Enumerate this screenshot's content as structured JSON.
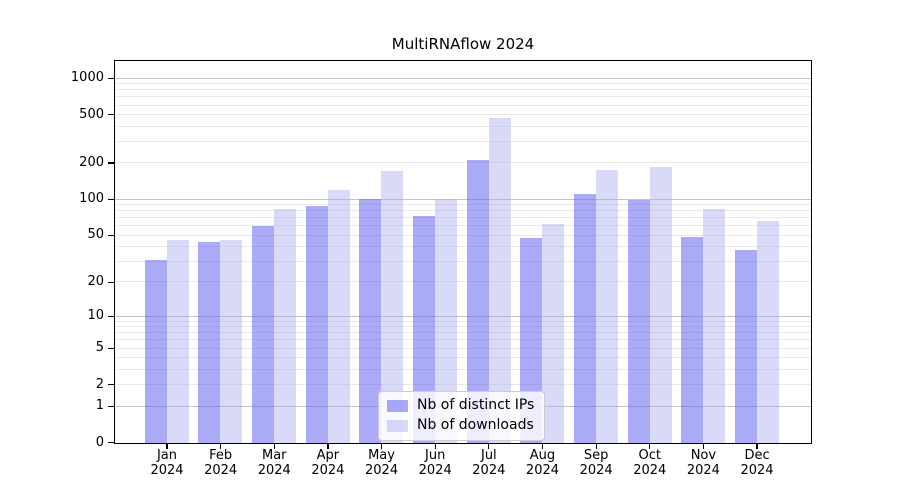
{
  "title": "MultiRNAflow 2024",
  "legend": {
    "items": [
      {
        "label": "Nb of distinct IPs",
        "color": "rgba(100,100,240,0.55)"
      },
      {
        "label": "Nb of downloads",
        "color": "rgba(170,170,240,0.45)"
      }
    ]
  },
  "x_axis": {
    "year": "2024",
    "months": [
      "Jan",
      "Feb",
      "Mar",
      "Apr",
      "May",
      "Jun",
      "Jul",
      "Aug",
      "Sep",
      "Oct",
      "Nov",
      "Dec"
    ]
  },
  "y_axis": {
    "tick_labels": [
      0,
      1,
      2,
      5,
      10,
      20,
      50,
      100,
      200,
      500,
      1000
    ]
  },
  "chart_data": {
    "type": "bar",
    "title": "MultiRNAflow 2024",
    "categories": [
      "Jan 2024",
      "Feb 2024",
      "Mar 2024",
      "Apr 2024",
      "May 2024",
      "Jun 2024",
      "Jul 2024",
      "Aug 2024",
      "Sep 2024",
      "Oct 2024",
      "Nov 2024",
      "Dec 2024"
    ],
    "series": [
      {
        "name": "Nb of distinct IPs",
        "color": "rgba(100,100,240,0.55)",
        "values": [
          31,
          44,
          60,
          89,
          102,
          73,
          213,
          48,
          112,
          100,
          49,
          38
        ]
      },
      {
        "name": "Nb of downloads",
        "color": "rgba(170,170,240,0.45)",
        "values": [
          46,
          46,
          84,
          119,
          174,
          102,
          470,
          62,
          176,
          185,
          83,
          66
        ]
      }
    ],
    "y_scale": "log1p",
    "y_ticks": [
      0,
      1,
      2,
      5,
      10,
      20,
      50,
      100,
      200,
      500,
      1000
    ],
    "ylim": [
      0,
      1430
    ],
    "grid": "on",
    "legend_position": "lower center",
    "xlabel": "",
    "ylabel": ""
  },
  "colors": {
    "bar_distinct_ips_flat": "#a4a4f2",
    "bar_downloads_flat": "#dadaf8",
    "grid_major": "#c3c3c3",
    "grid_minor": "#e9e9e9",
    "axis": "#000000",
    "background": "#ffffff",
    "legend_border": "#cccccc"
  }
}
